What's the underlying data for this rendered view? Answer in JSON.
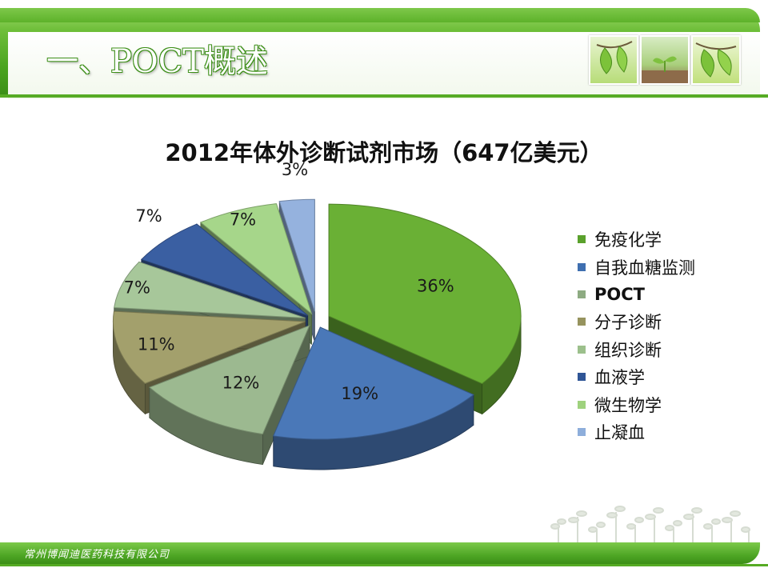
{
  "page": {
    "title": "一、POCT概述",
    "footer": "常州博闻迪医药科技有限公司"
  },
  "colors": {
    "header_green": "#4aa31f",
    "slice_colors": [
      "#6ab035",
      "#4a78b8",
      "#9cb990",
      "#a3a06c",
      "#a7c79a",
      "#3a5fa2",
      "#a6d68a",
      "#95b2de"
    ]
  },
  "icons": [
    "leaf-sprout-icon",
    "seedling-icon",
    "leaf-branch-icon",
    "grass-decoration-icon"
  ],
  "chart_data": {
    "type": "pie",
    "title_parts": [
      "2012",
      "年体外诊断试剂市场（",
      "647",
      "亿美元）"
    ],
    "categories": [
      "免疫化学",
      "自我血糖监测",
      "POCT",
      "分子诊断",
      "组织诊断",
      "血液学",
      "微生物学",
      "止凝血"
    ],
    "values": [
      36,
      19,
      12,
      11,
      7,
      7,
      7,
      3
    ],
    "labels": [
      "36%",
      "19%",
      "12%",
      "11%",
      "7%",
      "7%",
      "7%",
      "3%"
    ],
    "units": "%",
    "exploded": true,
    "three_d": true,
    "legend_position": "right"
  }
}
